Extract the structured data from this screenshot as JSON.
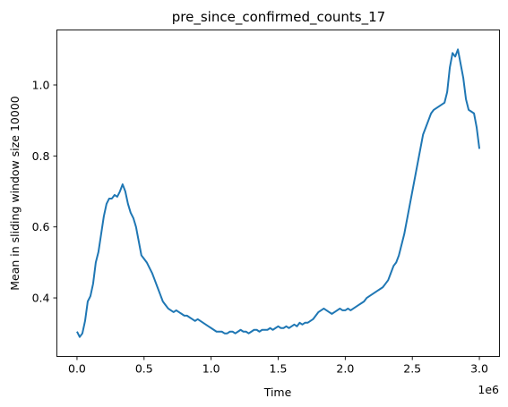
{
  "chart_data": {
    "type": "line",
    "title": "pre_since_confirmed_counts_17",
    "xlabel": "Time",
    "ylabel": "Mean in sliding window size 10000",
    "x_offset_label": "1e6",
    "xlim": [
      -0.15,
      3.15
    ],
    "ylim": [
      0.235,
      1.155
    ],
    "x_ticks": [
      0.0,
      0.5,
      1.0,
      1.5,
      2.0,
      2.5,
      3.0
    ],
    "x_tick_labels": [
      "0.0",
      "0.5",
      "1.0",
      "1.5",
      "2.0",
      "2.5",
      "3.0"
    ],
    "y_ticks": [
      0.4,
      0.6,
      0.8,
      1.0
    ],
    "y_tick_labels": [
      "0.4",
      "0.6",
      "0.8",
      "1.0"
    ],
    "grid": false,
    "line_color": "#1f77b4",
    "series": [
      {
        "x": [
          0.0,
          0.02,
          0.04,
          0.06,
          0.08,
          0.1,
          0.12,
          0.14,
          0.16,
          0.18,
          0.2,
          0.22,
          0.24,
          0.26,
          0.28,
          0.3,
          0.32,
          0.34,
          0.36,
          0.38,
          0.4,
          0.42,
          0.44,
          0.46,
          0.48,
          0.5,
          0.52,
          0.54,
          0.56,
          0.58,
          0.6,
          0.62,
          0.64,
          0.66,
          0.68,
          0.7,
          0.72,
          0.74,
          0.76,
          0.78,
          0.8,
          0.82,
          0.84,
          0.86,
          0.88,
          0.9,
          0.92,
          0.94,
          0.96,
          0.98,
          1.0,
          1.02,
          1.04,
          1.06,
          1.08,
          1.1,
          1.12,
          1.14,
          1.16,
          1.18,
          1.2,
          1.22,
          1.24,
          1.26,
          1.28,
          1.3,
          1.32,
          1.34,
          1.36,
          1.38,
          1.4,
          1.42,
          1.44,
          1.46,
          1.48,
          1.5,
          1.52,
          1.54,
          1.56,
          1.58,
          1.6,
          1.62,
          1.64,
          1.66,
          1.68,
          1.7,
          1.72,
          1.74,
          1.76,
          1.78,
          1.8,
          1.82,
          1.84,
          1.86,
          1.88,
          1.9,
          1.92,
          1.94,
          1.96,
          1.98,
          2.0,
          2.02,
          2.04,
          2.06,
          2.08,
          2.1,
          2.12,
          2.14,
          2.16,
          2.18,
          2.2,
          2.22,
          2.24,
          2.26,
          2.28,
          2.3,
          2.32,
          2.34,
          2.36,
          2.38,
          2.4,
          2.42,
          2.44,
          2.46,
          2.48,
          2.5,
          2.52,
          2.54,
          2.56,
          2.58,
          2.6,
          2.62,
          2.64,
          2.66,
          2.68,
          2.7,
          2.72,
          2.74,
          2.76,
          2.78,
          2.8,
          2.82,
          2.84,
          2.86,
          2.88,
          2.9,
          2.92,
          2.94,
          2.96,
          2.98,
          3.0
        ],
        "y": [
          0.305,
          0.29,
          0.3,
          0.335,
          0.39,
          0.405,
          0.44,
          0.5,
          0.53,
          0.58,
          0.63,
          0.665,
          0.68,
          0.68,
          0.69,
          0.685,
          0.7,
          0.72,
          0.7,
          0.665,
          0.64,
          0.625,
          0.6,
          0.56,
          0.52,
          0.51,
          0.5,
          0.485,
          0.47,
          0.45,
          0.43,
          0.41,
          0.39,
          0.38,
          0.37,
          0.365,
          0.36,
          0.365,
          0.36,
          0.355,
          0.35,
          0.35,
          0.345,
          0.34,
          0.335,
          0.34,
          0.335,
          0.33,
          0.325,
          0.32,
          0.315,
          0.31,
          0.305,
          0.305,
          0.305,
          0.3,
          0.3,
          0.305,
          0.305,
          0.3,
          0.305,
          0.31,
          0.305,
          0.305,
          0.3,
          0.305,
          0.31,
          0.31,
          0.305,
          0.31,
          0.31,
          0.31,
          0.315,
          0.31,
          0.315,
          0.32,
          0.315,
          0.315,
          0.32,
          0.315,
          0.32,
          0.325,
          0.32,
          0.33,
          0.325,
          0.33,
          0.33,
          0.335,
          0.34,
          0.35,
          0.36,
          0.365,
          0.37,
          0.365,
          0.36,
          0.355,
          0.36,
          0.365,
          0.37,
          0.365,
          0.365,
          0.37,
          0.365,
          0.37,
          0.375,
          0.38,
          0.385,
          0.39,
          0.4,
          0.405,
          0.41,
          0.415,
          0.42,
          0.425,
          0.43,
          0.44,
          0.45,
          0.47,
          0.49,
          0.5,
          0.52,
          0.55,
          0.58,
          0.62,
          0.66,
          0.7,
          0.74,
          0.78,
          0.82,
          0.86,
          0.88,
          0.9,
          0.92,
          0.93,
          0.935,
          0.94,
          0.945,
          0.95,
          0.98,
          1.05,
          1.09,
          1.08,
          1.1,
          1.06,
          1.02,
          0.96,
          0.93,
          0.925,
          0.92,
          0.88,
          0.82
        ]
      }
    ]
  }
}
